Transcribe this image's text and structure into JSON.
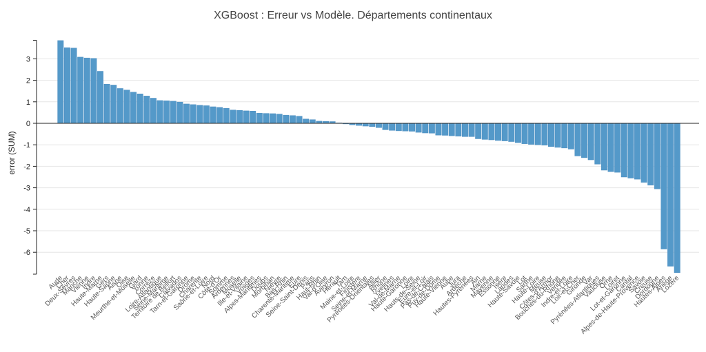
{
  "chart_data": {
    "type": "bar",
    "title": "XGBoost : Erreur vs Modèle. Départements continentaux",
    "xlabel": "",
    "ylabel": "error (SUM)",
    "ylim": [
      -7,
      3.8
    ],
    "yticks": [
      3,
      2,
      1,
      0,
      -1,
      -2,
      -3,
      -4,
      -5,
      -6
    ],
    "grid": true,
    "categories": [
      "Aude",
      "Cher",
      "Deux-Sèvres",
      "Manche",
      "Vienne",
      "Indre",
      "Haute-Marne",
      "Gers",
      "Haute-Saône",
      "Aisne",
      "Oise",
      "Meurthe-et-Moselle",
      "Gard",
      "Yonne",
      "Corrèze",
      "Loire-Atlantique",
      "Seine-Maritime",
      "Territoire de Belfort",
      "Calvados",
      "Tarn-et-Garonne",
      "Drôme",
      "Charente",
      "Saône-et-Loire",
      "Nord",
      "Côte-d'Or",
      "Somme",
      "Ardennes",
      "Moselle",
      "Ille-et-Vilaine",
      "Vosges",
      "Alpes-Maritimes",
      "Doubs",
      "Morbihan",
      "Nièvre",
      "Bas-Rhin",
      "Charente-Maritime",
      "Eure",
      "Seine-Saint-Denis",
      "Paris",
      "Haut-Rhin",
      "Val-d'Oise",
      "Aveyron",
      "Hérault",
      "Tarn",
      "Maine-et-Loire",
      "Finistère",
      "Seine-et-Marne",
      "Pyrénées-Orientales",
      "Allier",
      "Rhône",
      "Yvelines",
      "Val-de-Marne",
      "Haute-Garonne",
      "Loire",
      "Hauts-de-Seine",
      "Eure-et-Loir",
      "Pas-de-Calais",
      "Puy-de-Dôme",
      "Haute-Vienne",
      "Aube",
      "Jura",
      "Ardèche",
      "Hautes-Pyrénées",
      "Ain",
      "Marne",
      "Mayenne",
      "Essonne",
      "Isère",
      "Landes",
      "Haute-Savoie",
      "Lot",
      "Sarthe",
      "Haute-Loire",
      "Meuse",
      "Côtes-d'Armor",
      "Bouches-du-Rhône",
      "Vendée",
      "Indre-et-Loire",
      "Loir-et-Cher",
      "Gironde",
      "Var",
      "Pyrénées-Atlantiques",
      "Vaucluse",
      "Orne",
      "Loiret",
      "Lot-et-Garonne",
      "Cantal",
      "Alpes-de-Haute-Provence",
      "Savoie",
      "Creuse",
      "Dordogne",
      "Hautes-Alpes",
      "Ariège",
      "Lozère"
    ],
    "values": [
      3.85,
      3.52,
      3.5,
      3.08,
      3.04,
      3.02,
      2.42,
      1.82,
      1.78,
      1.62,
      1.55,
      1.45,
      1.37,
      1.27,
      1.17,
      1.06,
      1.05,
      1.03,
      0.99,
      0.9,
      0.87,
      0.84,
      0.82,
      0.77,
      0.74,
      0.7,
      0.62,
      0.6,
      0.58,
      0.57,
      0.47,
      0.46,
      0.45,
      0.43,
      0.38,
      0.36,
      0.33,
      0.2,
      0.17,
      0.1,
      0.09,
      0.08,
      0.02,
      -0.03,
      -0.07,
      -0.1,
      -0.13,
      -0.15,
      -0.2,
      -0.3,
      -0.33,
      -0.35,
      -0.36,
      -0.37,
      -0.42,
      -0.45,
      -0.46,
      -0.55,
      -0.56,
      -0.58,
      -0.6,
      -0.62,
      -0.62,
      -0.72,
      -0.75,
      -0.77,
      -0.8,
      -0.82,
      -0.85,
      -0.9,
      -0.95,
      -0.98,
      -1.0,
      -1.02,
      -1.08,
      -1.12,
      -1.15,
      -1.2,
      -1.52,
      -1.6,
      -1.7,
      -1.9,
      -2.18,
      -2.25,
      -2.28,
      -2.5,
      -2.55,
      -2.6,
      -2.75,
      -2.88,
      -3.05,
      -5.85,
      -6.65,
      -6.95
    ],
    "bar_color": "#5499c9"
  }
}
